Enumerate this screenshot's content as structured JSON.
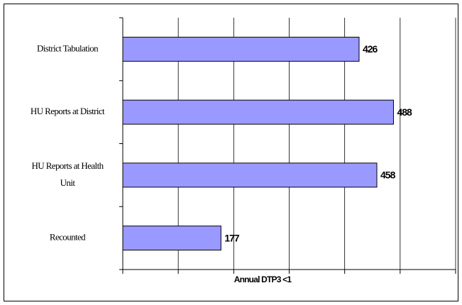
{
  "chart_data": {
    "type": "barh",
    "x_label": "Annual DTP3 <1",
    "categories": [
      "District Tabulation",
      "HU Reports at District",
      "HU Reports at Health Unit",
      "Recounted"
    ],
    "values": [
      426,
      488,
      458,
      177
    ],
    "color": "#9999ff",
    "xlim": [
      0,
      600
    ],
    "xticks": [
      0,
      100,
      200,
      300,
      400,
      500,
      600
    ],
    "grid": true
  }
}
